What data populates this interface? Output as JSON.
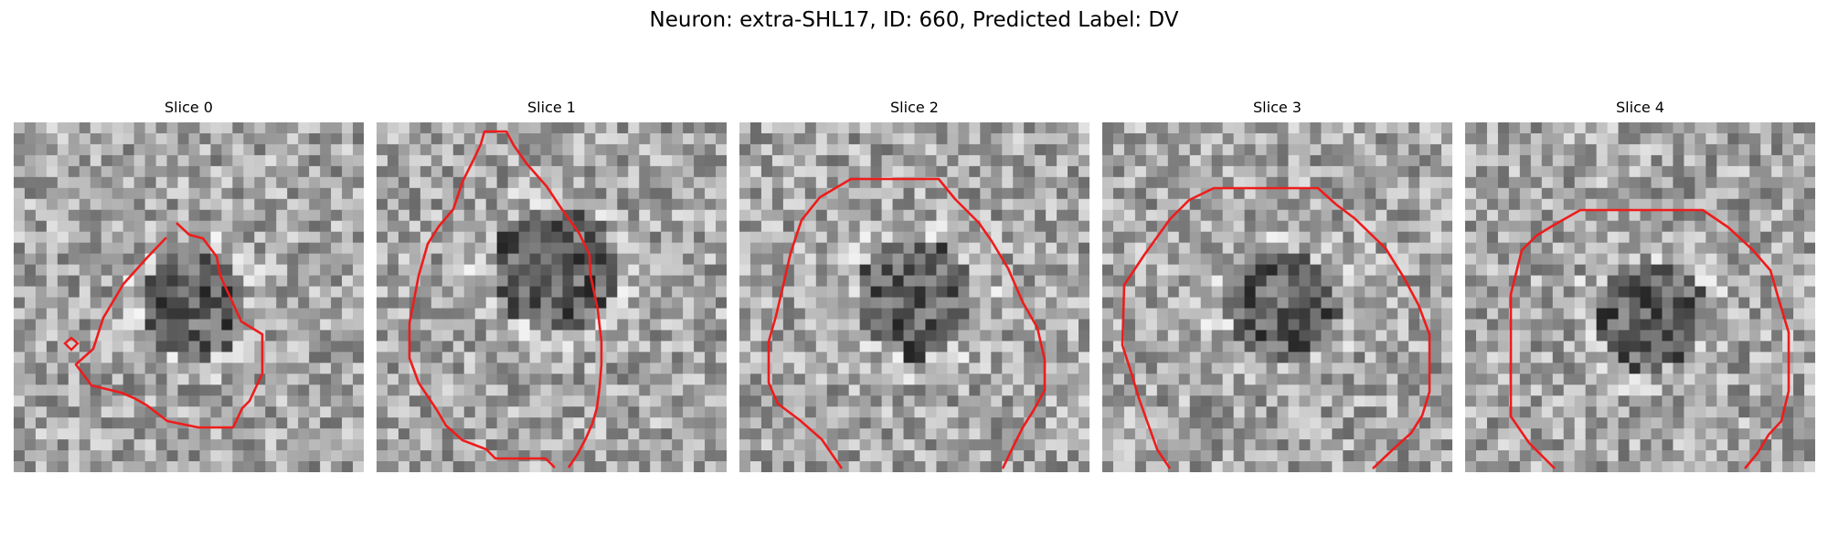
{
  "figure": {
    "title": "Neuron: extra-SHL17, ID: 660, Predicted Label: DV"
  },
  "panels": [
    {
      "title": "Slice 0"
    },
    {
      "title": "Slice 1"
    },
    {
      "title": "Slice 2"
    },
    {
      "title": "Slice 3"
    },
    {
      "title": "Slice 4"
    }
  ],
  "colors": {
    "contour": "#ee1c1c",
    "background": "#ffffff"
  }
}
